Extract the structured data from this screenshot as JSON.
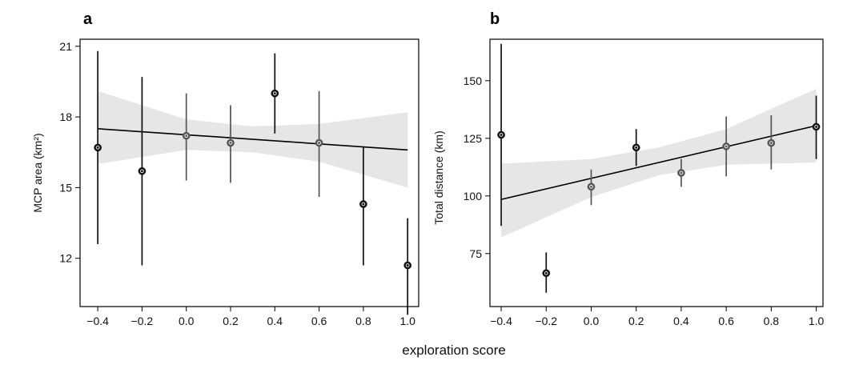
{
  "shared_xlabel": "exploration score",
  "chart_data": [
    {
      "type": "scatter",
      "panel_label": "a",
      "ylabel": "MCP area (km²)",
      "xlabel": "",
      "xlim": [
        -0.48,
        1.05
      ],
      "ylim": [
        9.95,
        21.3
      ],
      "x_ticks": [
        -0.4,
        -0.2,
        0.0,
        0.2,
        0.4,
        0.6,
        0.8,
        1.0
      ],
      "x_tick_labels": [
        "−0.4",
        "−0.2",
        "0.0",
        "0.2",
        "0.4",
        "0.6",
        "0.8",
        "1.0"
      ],
      "y_ticks": [
        12,
        15,
        18,
        21
      ],
      "y_tick_labels": [
        "12",
        "15",
        "18",
        "21"
      ],
      "points": [
        {
          "x": -0.4,
          "y": 16.7,
          "lo": 12.6,
          "hi": 20.8,
          "color": "#111111"
        },
        {
          "x": -0.2,
          "y": 15.7,
          "lo": 11.7,
          "hi": 19.7,
          "color": "#111111"
        },
        {
          "x": 0.0,
          "y": 17.2,
          "lo": 15.3,
          "hi": 19.0,
          "color": "#555555"
        },
        {
          "x": 0.2,
          "y": 16.9,
          "lo": 15.2,
          "hi": 18.5,
          "color": "#555555"
        },
        {
          "x": 0.4,
          "y": 19.0,
          "lo": 17.3,
          "hi": 20.7,
          "color": "#111111"
        },
        {
          "x": 0.6,
          "y": 16.9,
          "lo": 14.6,
          "hi": 19.1,
          "color": "#555555"
        },
        {
          "x": 0.8,
          "y": 14.3,
          "lo": 11.7,
          "hi": 16.7,
          "color": "#111111"
        },
        {
          "x": 1.0,
          "y": 11.7,
          "lo": 9.6,
          "hi": 13.7,
          "color": "#111111"
        }
      ],
      "fit_line": {
        "x": [
          -0.4,
          1.0
        ],
        "y": [
          17.5,
          16.6
        ]
      },
      "confidence_band": {
        "x": [
          -0.4,
          0.0,
          0.3,
          0.6,
          1.0
        ],
        "lo": [
          16.0,
          16.6,
          16.5,
          16.1,
          15.0
        ],
        "hi": [
          19.1,
          17.9,
          17.6,
          17.7,
          18.2
        ]
      },
      "grid": false
    },
    {
      "type": "scatter",
      "panel_label": "b",
      "ylabel": "Total distance (km)",
      "xlabel": "",
      "xlim": [
        -0.45,
        1.03
      ],
      "ylim": [
        52,
        168
      ],
      "x_ticks": [
        -0.4,
        -0.2,
        0.0,
        0.2,
        0.4,
        0.6,
        0.8,
        1.0
      ],
      "x_tick_labels": [
        "−0.4",
        "−0.2",
        "0.0",
        "0.2",
        "0.4",
        "0.6",
        "0.8",
        "1.0"
      ],
      "y_ticks": [
        75,
        100,
        125,
        150
      ],
      "y_tick_labels": [
        "75",
        "100",
        "125",
        "150"
      ],
      "points": [
        {
          "x": -0.4,
          "y": 126.5,
          "lo": 87.0,
          "hi": 166.0,
          "color": "#111111"
        },
        {
          "x": -0.2,
          "y": 66.5,
          "lo": 58.0,
          "hi": 75.5,
          "color": "#111111"
        },
        {
          "x": 0.0,
          "y": 104.0,
          "lo": 96.0,
          "hi": 111.5,
          "color": "#555555"
        },
        {
          "x": 0.2,
          "y": 121.0,
          "lo": 113.0,
          "hi": 129.0,
          "color": "#111111"
        },
        {
          "x": 0.4,
          "y": 110.0,
          "lo": 104.0,
          "hi": 116.0,
          "color": "#555555"
        },
        {
          "x": 0.6,
          "y": 121.5,
          "lo": 108.5,
          "hi": 134.5,
          "color": "#555555"
        },
        {
          "x": 0.8,
          "y": 123.0,
          "lo": 111.5,
          "hi": 135.0,
          "color": "#555555"
        },
        {
          "x": 1.0,
          "y": 130.0,
          "lo": 116.0,
          "hi": 143.5,
          "color": "#111111"
        }
      ],
      "fit_line": {
        "x": [
          -0.4,
          1.0
        ],
        "y": [
          98.5,
          130.5
        ]
      },
      "confidence_band": {
        "x": [
          -0.4,
          0.0,
          0.3,
          0.6,
          1.0
        ],
        "lo": [
          82.0,
          99.5,
          109.0,
          113.5,
          114.5
        ],
        "hi": [
          114.0,
          116.0,
          121.0,
          129.0,
          146.5
        ]
      },
      "grid": false
    }
  ]
}
